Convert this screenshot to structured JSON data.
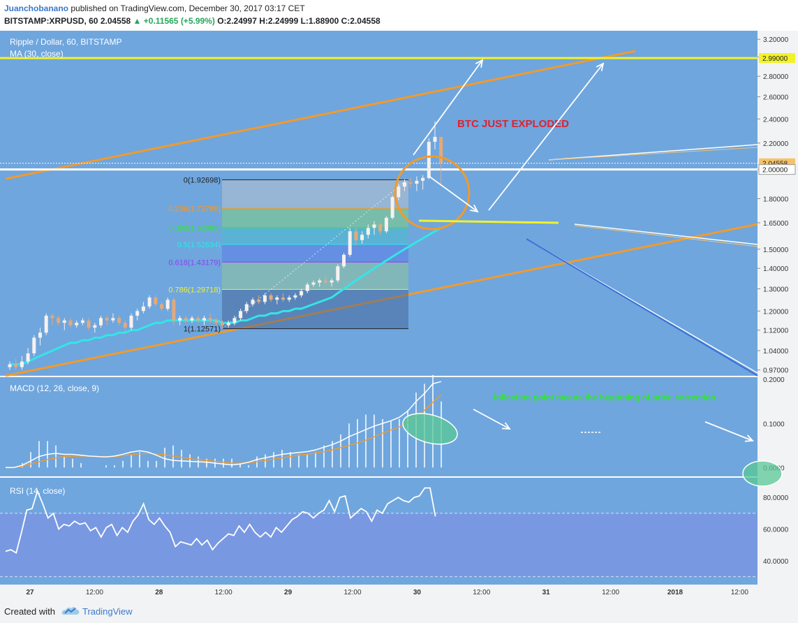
{
  "header": {
    "author": "Juanchobanano",
    "published": "published on TradingView.com, December 30, 2017 03:17 CET",
    "symbol": "BITSTAMP:XRPUSD, 60",
    "last": "2.04558",
    "change": "▲ +0.11565 (+5.99%)",
    "ohlc": "O:2.24997 H:2.24999 L:1.88900 C:2.04558"
  },
  "footer": {
    "created_with": "Created with",
    "brand": "TradingView"
  },
  "colors": {
    "background": "#6fa6de",
    "axis_bg": "#f2f3f5",
    "bull_candle": "#f7f1ee",
    "bear_candle": "#e3a97c",
    "ma_line": "#33e6e6",
    "orange_line": "#f39a2a",
    "yellow_line": "#f2f229",
    "macd_line": "#ffffff",
    "signal_line": "#f39a2a",
    "red_text": "#e0212f",
    "green_text": "#2ee62e"
  },
  "chart_data": [
    {
      "type": "candlestick",
      "title": "Ripple / Dollar, 60, BITSTAMP",
      "indicator": "MA (30, close)",
      "ylim": [
        0.95,
        3.3
      ],
      "yscale": "log",
      "y_ticks": [
        "3.20000",
        "3.00000",
        "2.80000",
        "2.60000",
        "2.40000",
        "2.20000",
        "2.00000",
        "1.80000",
        "1.65000",
        "1.50000",
        "1.40000",
        "1.30000",
        "1.20000",
        "1.12000",
        "1.04000",
        "0.97000"
      ],
      "x_ticks": [
        "27",
        "12:00",
        "28",
        "12:00",
        "29",
        "12:00",
        "30",
        "12:00",
        "31",
        "12:00",
        "2018",
        "12:00"
      ],
      "price_labels": [
        {
          "text": "2.99000",
          "value": 2.99,
          "color": "#f2f229"
        },
        {
          "text": "2.04558",
          "value": 2.04558,
          "color": "#f6c36a"
        },
        {
          "text": "2.00000",
          "value": 2.0,
          "color": "#ffffff"
        }
      ],
      "candles": [
        {
          "o": 0.98,
          "h": 1.0,
          "l": 0.97,
          "c": 0.99
        },
        {
          "o": 0.99,
          "h": 1.01,
          "l": 0.97,
          "c": 0.98
        },
        {
          "o": 0.98,
          "h": 1.02,
          "l": 0.97,
          "c": 1.0
        },
        {
          "o": 1.0,
          "h": 1.05,
          "l": 0.99,
          "c": 1.03
        },
        {
          "o": 1.03,
          "h": 1.1,
          "l": 1.02,
          "c": 1.09
        },
        {
          "o": 1.09,
          "h": 1.13,
          "l": 1.06,
          "c": 1.11
        },
        {
          "o": 1.11,
          "h": 1.19,
          "l": 1.1,
          "c": 1.18
        },
        {
          "o": 1.18,
          "h": 1.19,
          "l": 1.14,
          "c": 1.17
        },
        {
          "o": 1.17,
          "h": 1.18,
          "l": 1.14,
          "c": 1.15
        },
        {
          "o": 1.15,
          "h": 1.17,
          "l": 1.12,
          "c": 1.16
        },
        {
          "o": 1.16,
          "h": 1.17,
          "l": 1.13,
          "c": 1.14
        },
        {
          "o": 1.14,
          "h": 1.16,
          "l": 1.13,
          "c": 1.15
        },
        {
          "o": 1.15,
          "h": 1.17,
          "l": 1.14,
          "c": 1.16
        },
        {
          "o": 1.16,
          "h": 1.17,
          "l": 1.12,
          "c": 1.13
        },
        {
          "o": 1.13,
          "h": 1.15,
          "l": 1.11,
          "c": 1.14
        },
        {
          "o": 1.14,
          "h": 1.18,
          "l": 1.13,
          "c": 1.17
        },
        {
          "o": 1.17,
          "h": 1.18,
          "l": 1.14,
          "c": 1.16
        },
        {
          "o": 1.16,
          "h": 1.19,
          "l": 1.15,
          "c": 1.17
        },
        {
          "o": 1.17,
          "h": 1.18,
          "l": 1.14,
          "c": 1.15
        },
        {
          "o": 1.15,
          "h": 1.16,
          "l": 1.11,
          "c": 1.13
        },
        {
          "o": 1.13,
          "h": 1.19,
          "l": 1.12,
          "c": 1.18
        },
        {
          "o": 1.18,
          "h": 1.21,
          "l": 1.16,
          "c": 1.2
        },
        {
          "o": 1.2,
          "h": 1.24,
          "l": 1.19,
          "c": 1.22
        },
        {
          "o": 1.22,
          "h": 1.27,
          "l": 1.21,
          "c": 1.26
        },
        {
          "o": 1.26,
          "h": 1.27,
          "l": 1.22,
          "c": 1.23
        },
        {
          "o": 1.23,
          "h": 1.24,
          "l": 1.2,
          "c": 1.21
        },
        {
          "o": 1.21,
          "h": 1.26,
          "l": 1.2,
          "c": 1.25
        },
        {
          "o": 1.25,
          "h": 1.26,
          "l": 1.14,
          "c": 1.16
        },
        {
          "o": 1.16,
          "h": 1.18,
          "l": 1.14,
          "c": 1.17
        },
        {
          "o": 1.17,
          "h": 1.18,
          "l": 1.15,
          "c": 1.16
        },
        {
          "o": 1.16,
          "h": 1.18,
          "l": 1.15,
          "c": 1.17
        },
        {
          "o": 1.17,
          "h": 1.18,
          "l": 1.15,
          "c": 1.16
        },
        {
          "o": 1.16,
          "h": 1.18,
          "l": 1.14,
          "c": 1.17
        },
        {
          "o": 1.17,
          "h": 1.19,
          "l": 1.15,
          "c": 1.16
        },
        {
          "o": 1.16,
          "h": 1.17,
          "l": 1.14,
          "c": 1.15
        },
        {
          "o": 1.15,
          "h": 1.16,
          "l": 1.13,
          "c": 1.14
        },
        {
          "o": 1.14,
          "h": 1.16,
          "l": 1.13,
          "c": 1.15
        },
        {
          "o": 1.15,
          "h": 1.18,
          "l": 1.14,
          "c": 1.17
        },
        {
          "o": 1.17,
          "h": 1.21,
          "l": 1.16,
          "c": 1.2
        },
        {
          "o": 1.2,
          "h": 1.24,
          "l": 1.19,
          "c": 1.23
        },
        {
          "o": 1.23,
          "h": 1.26,
          "l": 1.22,
          "c": 1.25
        },
        {
          "o": 1.25,
          "h": 1.27,
          "l": 1.23,
          "c": 1.24
        },
        {
          "o": 1.24,
          "h": 1.28,
          "l": 1.23,
          "c": 1.27
        },
        {
          "o": 1.27,
          "h": 1.28,
          "l": 1.24,
          "c": 1.25
        },
        {
          "o": 1.25,
          "h": 1.27,
          "l": 1.23,
          "c": 1.26
        },
        {
          "o": 1.26,
          "h": 1.28,
          "l": 1.24,
          "c": 1.25
        },
        {
          "o": 1.25,
          "h": 1.27,
          "l": 1.24,
          "c": 1.26
        },
        {
          "o": 1.26,
          "h": 1.28,
          "l": 1.25,
          "c": 1.27
        },
        {
          "o": 1.27,
          "h": 1.3,
          "l": 1.26,
          "c": 1.29
        },
        {
          "o": 1.29,
          "h": 1.33,
          "l": 1.28,
          "c": 1.32
        },
        {
          "o": 1.32,
          "h": 1.34,
          "l": 1.31,
          "c": 1.33
        },
        {
          "o": 1.33,
          "h": 1.35,
          "l": 1.31,
          "c": 1.34
        },
        {
          "o": 1.34,
          "h": 1.36,
          "l": 1.32,
          "c": 1.33
        },
        {
          "o": 1.33,
          "h": 1.35,
          "l": 1.31,
          "c": 1.34
        },
        {
          "o": 1.34,
          "h": 1.42,
          "l": 1.33,
          "c": 1.41
        },
        {
          "o": 1.41,
          "h": 1.48,
          "l": 1.4,
          "c": 1.47
        },
        {
          "o": 1.47,
          "h": 1.62,
          "l": 1.46,
          "c": 1.6
        },
        {
          "o": 1.6,
          "h": 1.62,
          "l": 1.52,
          "c": 1.55
        },
        {
          "o": 1.55,
          "h": 1.6,
          "l": 1.53,
          "c": 1.58
        },
        {
          "o": 1.58,
          "h": 1.64,
          "l": 1.56,
          "c": 1.62
        },
        {
          "o": 1.62,
          "h": 1.66,
          "l": 1.58,
          "c": 1.64
        },
        {
          "o": 1.64,
          "h": 1.65,
          "l": 1.58,
          "c": 1.6
        },
        {
          "o": 1.6,
          "h": 1.69,
          "l": 1.59,
          "c": 1.68
        },
        {
          "o": 1.68,
          "h": 1.82,
          "l": 1.67,
          "c": 1.81
        },
        {
          "o": 1.81,
          "h": 1.9,
          "l": 1.79,
          "c": 1.88
        },
        {
          "o": 1.88,
          "h": 1.93,
          "l": 1.85,
          "c": 1.91
        },
        {
          "o": 1.91,
          "h": 1.94,
          "l": 1.87,
          "c": 1.9
        },
        {
          "o": 1.9,
          "h": 1.95,
          "l": 1.85,
          "c": 1.92
        },
        {
          "o": 1.92,
          "h": 1.96,
          "l": 1.86,
          "c": 1.94
        },
        {
          "o": 1.94,
          "h": 2.24,
          "l": 1.93,
          "c": 2.21
        },
        {
          "o": 2.21,
          "h": 2.38,
          "l": 2.15,
          "c": 2.25
        },
        {
          "o": 2.24997,
          "h": 2.24999,
          "l": 1.889,
          "c": 2.04558
        }
      ],
      "ma": [
        0.99,
        0.99,
        0.99,
        1.0,
        1.01,
        1.02,
        1.03,
        1.04,
        1.05,
        1.06,
        1.07,
        1.07,
        1.08,
        1.08,
        1.09,
        1.09,
        1.1,
        1.1,
        1.11,
        1.11,
        1.12,
        1.12,
        1.13,
        1.14,
        1.15,
        1.15,
        1.16,
        1.16,
        1.16,
        1.16,
        1.16,
        1.16,
        1.16,
        1.16,
        1.16,
        1.15,
        1.15,
        1.15,
        1.16,
        1.16,
        1.17,
        1.18,
        1.18,
        1.19,
        1.19,
        1.2,
        1.2,
        1.21,
        1.21,
        1.22,
        1.23,
        1.24,
        1.25,
        1.26,
        1.28,
        1.3,
        1.32,
        1.34,
        1.36,
        1.38,
        1.4,
        1.42,
        1.44,
        1.46,
        1.48,
        1.5,
        1.52,
        1.54,
        1.56,
        1.58,
        1.6,
        1.62
      ],
      "fibonacci": [
        {
          "label": "0(1.92698)",
          "value": 1.92698,
          "color": "#222222"
        },
        {
          "label": "0.236(1.73788)",
          "value": 1.73788,
          "color": "#f39a2a"
        },
        {
          "label": "0.382(1.62089)",
          "value": 1.62089,
          "color": "#2ee62e"
        },
        {
          "label": "0.5(1.52634)",
          "value": 1.52634,
          "color": "#33e6e6"
        },
        {
          "label": "0.618(1.43179)",
          "value": 1.43179,
          "color": "#8844ee"
        },
        {
          "label": "0.786(1.29718)",
          "value": 1.29718,
          "color": "#f2f229"
        },
        {
          "label": "1(1.12571)",
          "value": 1.12571,
          "color": "#222222"
        }
      ],
      "annotation": "BTC JUST EXPLODED"
    },
    {
      "type": "line",
      "title": "MACD (12, 26, close, 9)",
      "ylim": [
        -0.02,
        0.205
      ],
      "y_ticks": [
        "0.2000",
        "0.1000",
        "0.0000"
      ],
      "series": [
        {
          "values": [
            0.0,
            0.0,
            0.005,
            0.015,
            0.025,
            0.03,
            0.032,
            0.03,
            0.03,
            0.028,
            0.026,
            0.025,
            0.024,
            0.026,
            0.03,
            0.035,
            0.038,
            0.035,
            0.028,
            0.02,
            0.016,
            0.015,
            0.014,
            0.013,
            0.012,
            0.01,
            0.008,
            0.006,
            0.008,
            0.012,
            0.018,
            0.022,
            0.026,
            0.03,
            0.032,
            0.034,
            0.036,
            0.04,
            0.046,
            0.052,
            0.06,
            0.07,
            0.078,
            0.086,
            0.094,
            0.1,
            0.106,
            0.114,
            0.128,
            0.15,
            0.168,
            0.19,
            0.195
          ]
        },
        {
          "values": [
            0.0,
            0.0,
            0.003,
            0.008,
            0.013,
            0.018,
            0.022,
            0.025,
            0.026,
            0.026,
            0.026,
            0.025,
            0.025,
            0.025,
            0.027,
            0.029,
            0.031,
            0.032,
            0.031,
            0.029,
            0.026,
            0.023,
            0.02,
            0.018,
            0.016,
            0.014,
            0.012,
            0.01,
            0.01,
            0.011,
            0.013,
            0.016,
            0.019,
            0.022,
            0.025,
            0.028,
            0.03,
            0.033,
            0.036,
            0.04,
            0.045,
            0.05,
            0.056,
            0.062,
            0.07,
            0.078,
            0.085,
            0.092,
            0.102,
            0.116,
            0.13,
            0.148,
            0.165
          ]
        }
      ],
      "annotation": "Inflection point means the beginning of price correction"
    },
    {
      "type": "line",
      "title": "RSI (14, close)",
      "ylim": [
        25,
        92
      ],
      "y_ticks": [
        "80.0000",
        "60.0000",
        "40.0000"
      ],
      "band": [
        30,
        70
      ],
      "values": [
        46,
        47,
        45,
        58,
        72,
        73,
        84,
        76,
        67,
        70,
        60,
        63,
        62,
        65,
        63,
        64,
        59,
        61,
        55,
        61,
        63,
        56,
        61,
        58,
        65,
        69,
        76,
        66,
        63,
        67,
        62,
        58,
        49,
        52,
        51,
        50,
        54,
        50,
        53,
        47,
        51,
        54,
        57,
        56,
        62,
        58,
        63,
        58,
        55,
        58,
        55,
        61,
        58,
        62,
        66,
        68,
        71,
        70,
        67,
        70,
        72,
        78,
        71,
        80,
        81,
        67,
        70,
        73,
        71,
        65,
        72,
        70,
        76,
        78,
        80,
        78,
        77,
        80,
        81,
        86,
        86,
        68
      ]
    }
  ]
}
